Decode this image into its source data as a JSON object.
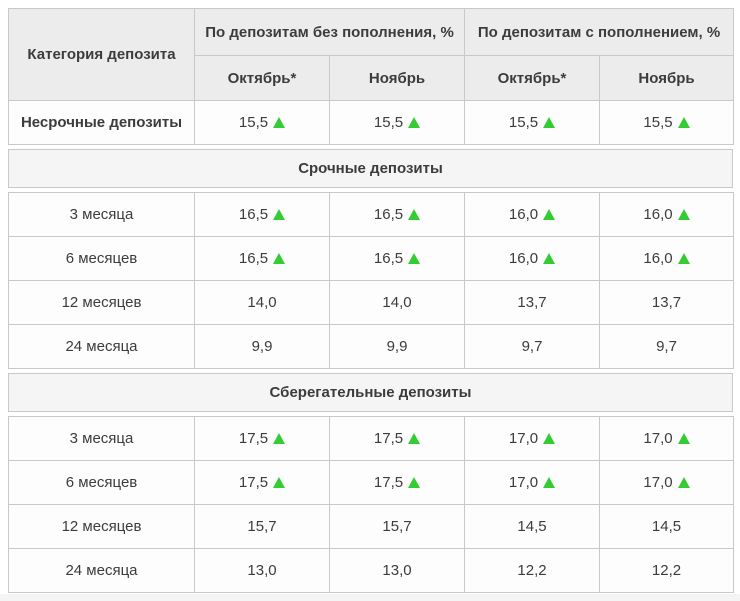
{
  "colors": {
    "up_green": "#33cc33",
    "header_bg": "#ececec",
    "section_bg": "#f5f5f5",
    "border": "#c9c9c9",
    "text": "#3c3c3c"
  },
  "chart_data": {
    "type": "table",
    "category_header": "Категория депозита",
    "group_headers": [
      "По депозитам без пополнения, %",
      "По депозитам с пополнением, %"
    ],
    "month_headers": [
      "Октябрь*",
      "Ноябрь",
      "Октябрь*",
      "Ноябрь"
    ],
    "first_row": {
      "label": "Несрочные депозиты",
      "bold": true,
      "values": [
        {
          "v": "15,5",
          "up": true
        },
        {
          "v": "15,5",
          "up": true
        },
        {
          "v": "15,5",
          "up": true
        },
        {
          "v": "15,5",
          "up": true
        }
      ]
    },
    "sections": [
      {
        "title": "Срочные депозиты",
        "rows": [
          {
            "label": "3 месяца",
            "bold": false,
            "values": [
              {
                "v": "16,5",
                "up": true
              },
              {
                "v": "16,5",
                "up": true
              },
              {
                "v": "16,0",
                "up": true
              },
              {
                "v": "16,0",
                "up": true
              }
            ]
          },
          {
            "label": "6 месяцев",
            "bold": false,
            "values": [
              {
                "v": "16,5",
                "up": true
              },
              {
                "v": "16,5",
                "up": true
              },
              {
                "v": "16,0",
                "up": true
              },
              {
                "v": "16,0",
                "up": true
              }
            ]
          },
          {
            "label": "12 месяцев",
            "bold": false,
            "values": [
              {
                "v": "14,0",
                "up": false
              },
              {
                "v": "14,0",
                "up": false
              },
              {
                "v": "13,7",
                "up": false
              },
              {
                "v": "13,7",
                "up": false
              }
            ]
          },
          {
            "label": "24 месяца",
            "bold": false,
            "values": [
              {
                "v": "9,9",
                "up": false
              },
              {
                "v": "9,9",
                "up": false
              },
              {
                "v": "9,7",
                "up": false
              },
              {
                "v": "9,7",
                "up": false
              }
            ]
          }
        ]
      },
      {
        "title": "Сберегательные депозиты",
        "rows": [
          {
            "label": "3 месяца",
            "bold": false,
            "values": [
              {
                "v": "17,5",
                "up": true
              },
              {
                "v": "17,5",
                "up": true
              },
              {
                "v": "17,0",
                "up": true
              },
              {
                "v": "17,0",
                "up": true
              }
            ]
          },
          {
            "label": "6 месяцев",
            "bold": false,
            "values": [
              {
                "v": "17,5",
                "up": true
              },
              {
                "v": "17,5",
                "up": true
              },
              {
                "v": "17,0",
                "up": true
              },
              {
                "v": "17,0",
                "up": true
              }
            ]
          },
          {
            "label": "12 месяцев",
            "bold": false,
            "values": [
              {
                "v": "15,7",
                "up": false
              },
              {
                "v": "15,7",
                "up": false
              },
              {
                "v": "14,5",
                "up": false
              },
              {
                "v": "14,5",
                "up": false
              }
            ]
          },
          {
            "label": "24 месяца",
            "bold": false,
            "values": [
              {
                "v": "13,0",
                "up": false
              },
              {
                "v": "13,0",
                "up": false
              },
              {
                "v": "12,2",
                "up": false
              },
              {
                "v": "12,2",
                "up": false
              }
            ]
          }
        ]
      }
    ]
  }
}
